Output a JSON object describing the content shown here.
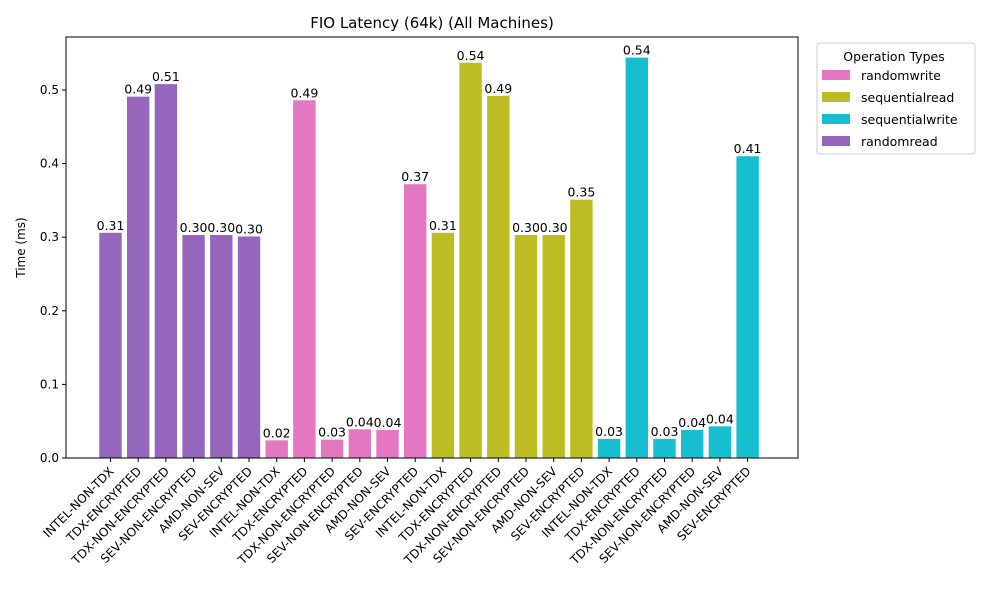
{
  "chart_data": {
    "type": "bar",
    "title": "FIO Latency (64k) (All Machines)",
    "xlabel": "",
    "ylabel": "Time (ms)",
    "ylim": [
      0,
      0.572
    ],
    "yticks": [
      "0.0",
      "0.1",
      "0.2",
      "0.3",
      "0.4",
      "0.5"
    ],
    "grid": false,
    "categories": [
      "INTEL-NON-TDX",
      "TDX-ENCRYPTED",
      "TDX-NON-ENCRYPTED",
      "SEV-NON-ENCRYPTED",
      "AMD-NON-SEV",
      "SEV-ENCRYPTED",
      "INTEL-NON-TDX",
      "TDX-ENCRYPTED",
      "TDX-NON-ENCRYPTED",
      "SEV-NON-ENCRYPTED",
      "AMD-NON-SEV",
      "SEV-ENCRYPTED",
      "INTEL-NON-TDX",
      "TDX-ENCRYPTED",
      "TDX-NON-ENCRYPTED",
      "SEV-NON-ENCRYPTED",
      "AMD-NON-SEV",
      "SEV-ENCRYPTED",
      "INTEL-NON-TDX",
      "TDX-ENCRYPTED",
      "TDX-NON-ENCRYPTED",
      "SEV-NON-ENCRYPTED",
      "AMD-NON-SEV",
      "SEV-ENCRYPTED"
    ],
    "values": [
      0.306,
      0.491,
      0.508,
      0.303,
      0.303,
      0.301,
      0.024,
      0.486,
      0.025,
      0.039,
      0.038,
      0.372,
      0.306,
      0.537,
      0.492,
      0.303,
      0.303,
      0.351,
      0.026,
      0.544,
      0.026,
      0.038,
      0.043,
      0.41
    ],
    "value_labels": [
      "0.31",
      "0.49",
      "0.51",
      "0.30",
      "0.30",
      "0.30",
      "0.02",
      "0.49",
      "0.03",
      "0.04",
      "0.04",
      "0.37",
      "0.31",
      "0.54",
      "0.49",
      "0.30",
      "0.30",
      "0.35",
      "0.03",
      "0.54",
      "0.03",
      "0.04",
      "0.04",
      "0.41"
    ],
    "bar_groups": [
      "randomread",
      "randomread",
      "randomread",
      "randomread",
      "randomread",
      "randomread",
      "randomwrite",
      "randomwrite",
      "randomwrite",
      "randomwrite",
      "randomwrite",
      "randomwrite",
      "sequentialread",
      "sequentialread",
      "sequentialread",
      "sequentialread",
      "sequentialread",
      "sequentialread",
      "sequentialwrite",
      "sequentialwrite",
      "sequentialwrite",
      "sequentialwrite",
      "sequentialwrite",
      "sequentialwrite"
    ],
    "colors": {
      "randomwrite": "#e377c2",
      "sequentialread": "#bcbd22",
      "sequentialwrite": "#17becf",
      "randomread": "#9467bd"
    },
    "legend": {
      "title": "Operation Types",
      "placement": "outside-top-right",
      "entries": [
        "randomwrite",
        "sequentialread",
        "sequentialwrite",
        "randomread"
      ]
    }
  }
}
